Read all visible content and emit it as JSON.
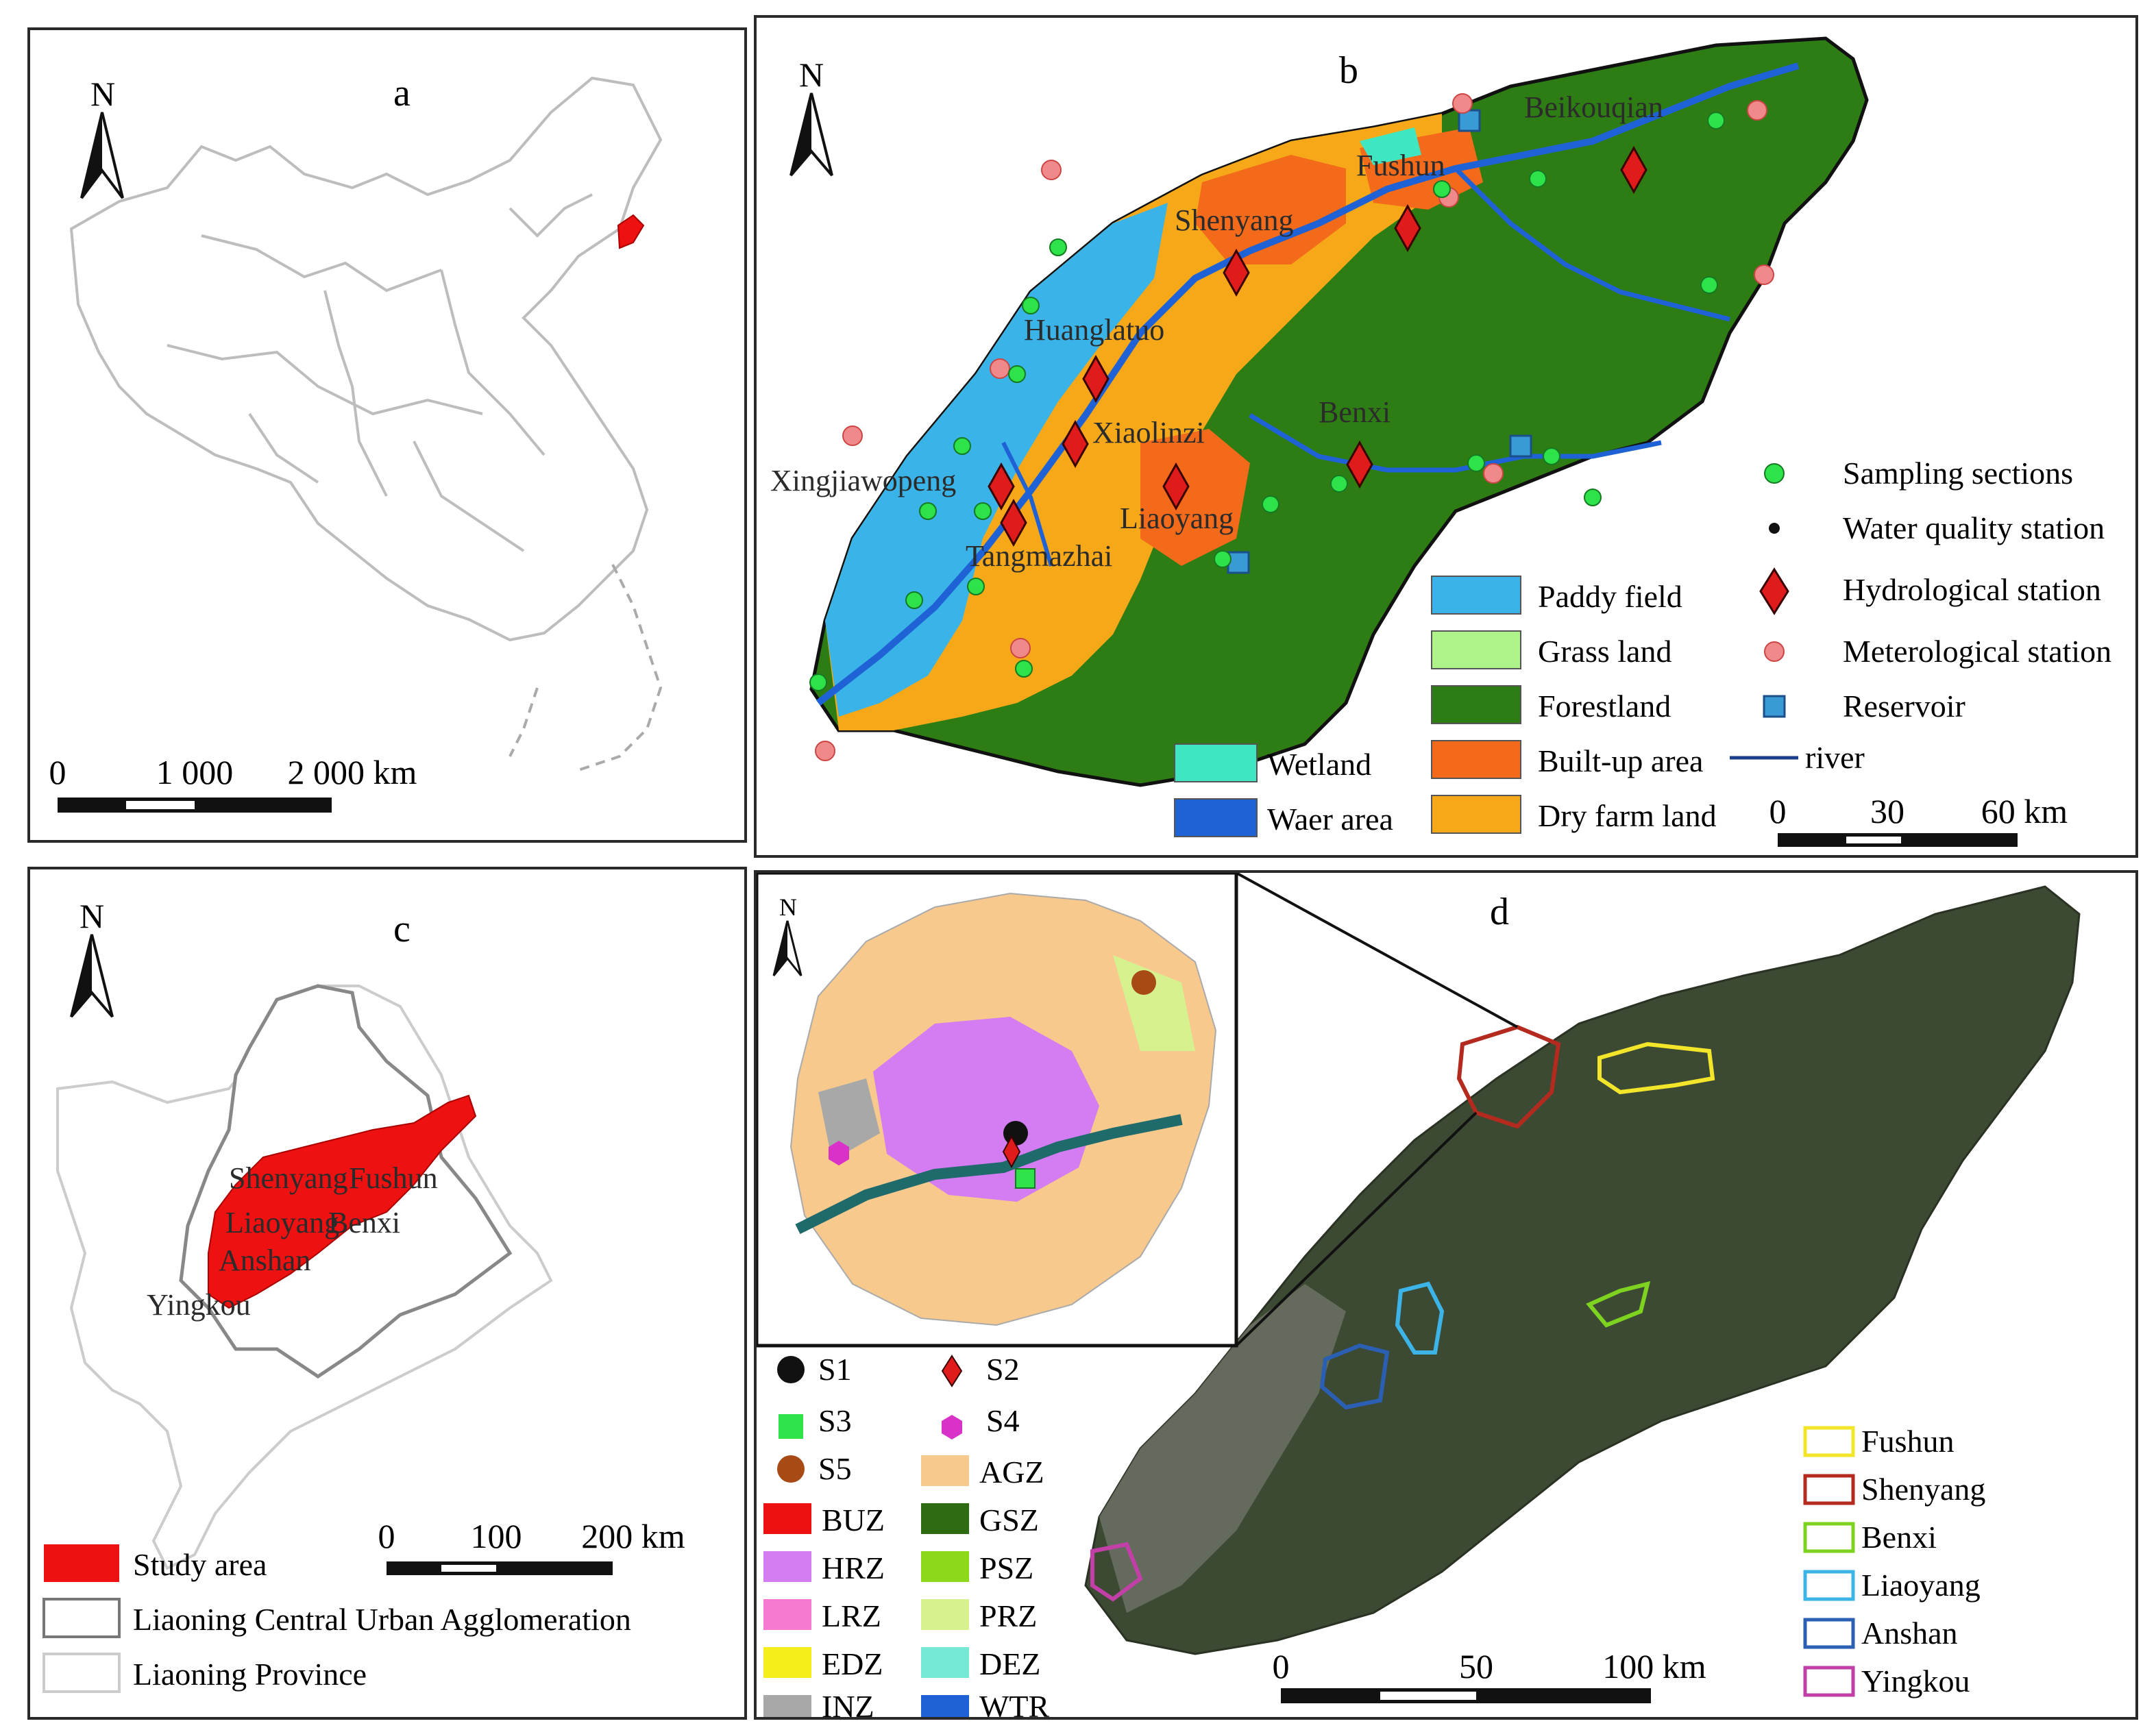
{
  "panel_a": {
    "label": "a",
    "north": "N",
    "scale": [
      "0",
      "1 000",
      "2 000 km"
    ]
  },
  "panel_b": {
    "label": "b",
    "north": "N",
    "stations": [
      "Beikouqian",
      "Fushun",
      "Shenyang",
      "Huanglatuo",
      "Xiaolinzi",
      "Benxi",
      "Xingjiawopeng",
      "Liaoyang",
      "Tangmazhai"
    ],
    "point_legend": [
      "Sampling sections",
      "Water quality station",
      "Hydrological station",
      "Meterological station",
      "Reservoir",
      "river"
    ],
    "landuse_legend": [
      {
        "label": "Paddy field",
        "color": "#3ab4e8"
      },
      {
        "label": "Grass land",
        "color": "#aef28a"
      },
      {
        "label": "Forestland",
        "color": "#2e7d14"
      },
      {
        "label": "Built-up area",
        "color": "#f26a1a"
      },
      {
        "label": "Dry farm land",
        "color": "#f6a818"
      },
      {
        "label": "Wetland",
        "color": "#3fe6c2"
      },
      {
        "label": "Waer area",
        "color": "#1f62d6"
      }
    ],
    "scale": [
      "0",
      "30",
      "60 km"
    ]
  },
  "panel_c": {
    "label": "c",
    "north": "N",
    "cities": [
      "Shenyang",
      "Fushun",
      "Liaoyang",
      "Benxi",
      "Anshan",
      "Yingkou"
    ],
    "scale": [
      "0",
      "100",
      "200 km"
    ],
    "legend": [
      {
        "label": "Study area",
        "color": "#ee1111"
      },
      {
        "label": "Liaoning Central Urban Agglomeration",
        "color": "#777777"
      },
      {
        "label": "Liaoning Province",
        "color": "#cccccc"
      }
    ]
  },
  "panel_d": {
    "label": "d",
    "north": "N",
    "sites": [
      {
        "label": "S1"
      },
      {
        "label": "S2"
      },
      {
        "label": "S3"
      },
      {
        "label": "S4"
      },
      {
        "label": "S5"
      }
    ],
    "zones": [
      {
        "label": "AGZ",
        "color": "#f7c98d"
      },
      {
        "label": "BUZ",
        "color": "#ee1111"
      },
      {
        "label": "GSZ",
        "color": "#2f6b12"
      },
      {
        "label": "HRZ",
        "color": "#d47cf2"
      },
      {
        "label": "PSZ",
        "color": "#8ed81c"
      },
      {
        "label": "LRZ",
        "color": "#f57ad0"
      },
      {
        "label": "PRZ",
        "color": "#d6f28f"
      },
      {
        "label": "EDZ",
        "color": "#f6ee1a"
      },
      {
        "label": "DEZ",
        "color": "#74e8d4"
      },
      {
        "label": "INZ",
        "color": "#a8a8a8"
      },
      {
        "label": "WTR",
        "color": "#1f62d6"
      }
    ],
    "city_legend": [
      {
        "label": "Fushun",
        "color": "#f3e62a"
      },
      {
        "label": "Shenyang",
        "color": "#b42a1e"
      },
      {
        "label": "Benxi",
        "color": "#7ed321"
      },
      {
        "label": "Liaoyang",
        "color": "#3cb4e8"
      },
      {
        "label": "Anshan",
        "color": "#2b5fb3"
      },
      {
        "label": "Yingkou",
        "color": "#c23fa8"
      }
    ],
    "scale": [
      "0",
      "50",
      "100 km"
    ]
  }
}
